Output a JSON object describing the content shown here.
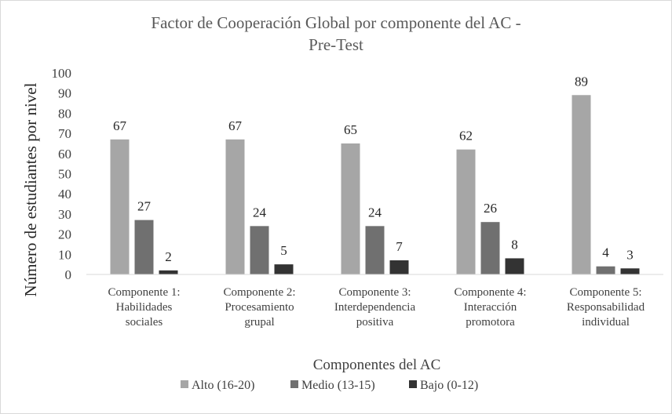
{
  "chart_data": {
    "type": "bar",
    "title": [
      "Factor de Cooperación Global por componente del AC -",
      "Pre-Test"
    ],
    "xlabel": "Componentes del AC",
    "ylabel": "Número de estudiantes por nivel",
    "ylim": [
      0,
      100
    ],
    "yticks": [
      0,
      10,
      20,
      30,
      40,
      50,
      60,
      70,
      80,
      90,
      100
    ],
    "grid": false,
    "legend_position": "bottom",
    "categories": [
      [
        "Componente 1:",
        "Habilidades",
        "sociales"
      ],
      [
        "Componente 2:",
        "Procesamiento",
        "grupal"
      ],
      [
        "Componente 3:",
        "Interdependencia",
        "positiva"
      ],
      [
        "Componente 4:",
        "Interacción",
        "promotora"
      ],
      [
        "Componente 5:",
        "Responsabilidad",
        "individual"
      ]
    ],
    "series": [
      {
        "name": "Alto (16-20)",
        "color": "#a6a6a6",
        "values": [
          67,
          67,
          65,
          62,
          89
        ]
      },
      {
        "name": "Medio (13-15)",
        "color": "#707070",
        "values": [
          27,
          24,
          24,
          26,
          4
        ]
      },
      {
        "name": "Bajo (0-12)",
        "color": "#333333",
        "values": [
          2,
          5,
          7,
          8,
          3
        ]
      }
    ]
  }
}
